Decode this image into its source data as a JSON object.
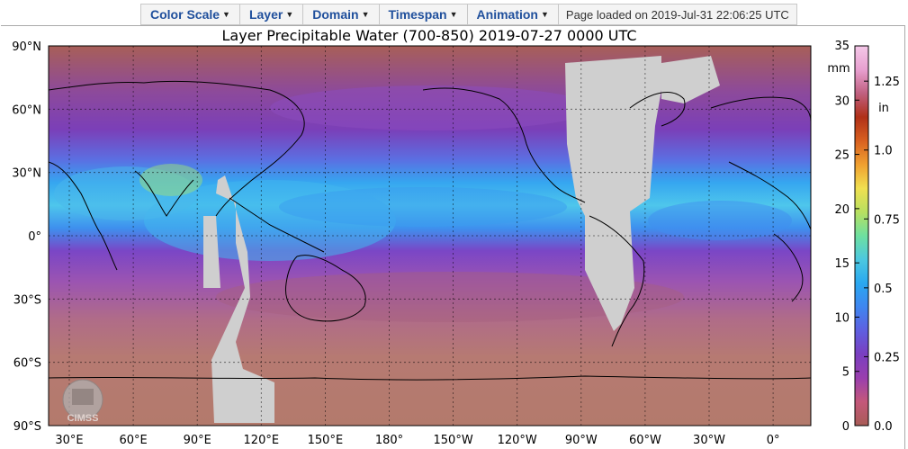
{
  "menu": [
    {
      "label": "Color Scale",
      "name": "menu-color-scale"
    },
    {
      "label": "Layer",
      "name": "menu-layer"
    },
    {
      "label": "Domain",
      "name": "menu-domain"
    },
    {
      "label": "Timespan",
      "name": "menu-timespan"
    },
    {
      "label": "Animation",
      "name": "menu-animation"
    }
  ],
  "status": "Page loaded on 2019-Jul-31 22:06:25 UTC",
  "map": {
    "title": "Layer Precipitable Water (700-850)  2019-07-27 0000 UTC",
    "lat_labels": [
      "90°N",
      "60°N",
      "30°N",
      "0°",
      "30°S",
      "60°S",
      "90°S"
    ],
    "lon_labels": [
      "30°E",
      "60°E",
      "90°E",
      "120°E",
      "150°E",
      "180°",
      "150°W",
      "120°W",
      "90°W",
      "60°W",
      "30°W",
      "0°"
    ],
    "logo_text": "CIMSS"
  },
  "colorbar": {
    "unit_mm": "mm",
    "unit_in": "in",
    "mm_ticks": [
      "35",
      "30",
      "25",
      "20",
      "15",
      "10",
      "5",
      "0"
    ],
    "in_ticks": [
      "1.25",
      "1.0",
      "0.75",
      "0.5",
      "0.25",
      "0.0"
    ],
    "colors": [
      "#a85c56",
      "#c4587a",
      "#9a3fae",
      "#7a3fc0",
      "#5f5fe0",
      "#3f86f0",
      "#2aa8f0",
      "#4cc8e0",
      "#6ee0a0",
      "#b8e060",
      "#f0e050",
      "#f0a030",
      "#d86020",
      "#b03018",
      "#c06080",
      "#e8a0d0",
      "#f4c8e8"
    ]
  }
}
